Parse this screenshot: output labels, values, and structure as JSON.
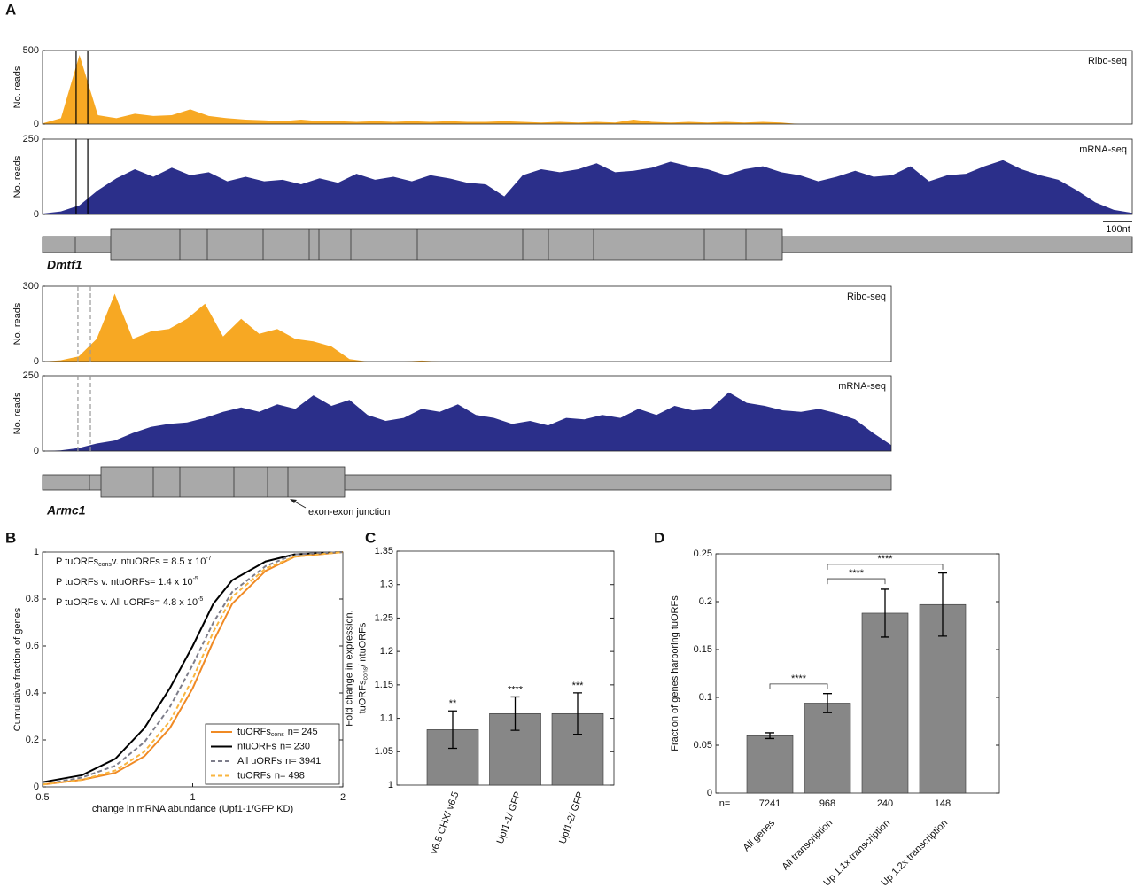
{
  "panel_labels": [
    "A",
    "B",
    "C",
    "D"
  ],
  "chart_data": [
    {
      "type": "area",
      "label": "Ribo-seq",
      "ylabel": "No. reads",
      "color": "#f7a823",
      "ylim": [
        0,
        500
      ],
      "yticks": [
        0,
        500
      ],
      "markers": [
        1.82,
        2.45
      ],
      "marker_style": "solid",
      "values": [
        5,
        40,
        470,
        60,
        40,
        70,
        55,
        60,
        100,
        55,
        40,
        30,
        25,
        20,
        30,
        20,
        20,
        15,
        20,
        15,
        20,
        15,
        20,
        15,
        15,
        20,
        15,
        10,
        15,
        10,
        15,
        10,
        30,
        15,
        10,
        15,
        10,
        15,
        10,
        15,
        10,
        0,
        0,
        0,
        0,
        0,
        0,
        0,
        0,
        0,
        0,
        0,
        0,
        0,
        0,
        0,
        0,
        0,
        0,
        0
      ]
    },
    {
      "type": "area",
      "label": "mRNA-seq",
      "ylabel": "No. reads",
      "color": "#2b2f8a",
      "ylim": [
        0,
        250
      ],
      "yticks": [
        0,
        250
      ],
      "markers": [
        1.82,
        2.45
      ],
      "marker_style": "solid",
      "gene": "Dmtf1",
      "scale_bar": "100nt",
      "values": [
        3,
        10,
        30,
        80,
        120,
        150,
        125,
        155,
        130,
        140,
        110,
        125,
        110,
        115,
        100,
        120,
        105,
        135,
        115,
        125,
        110,
        130,
        120,
        105,
        100,
        60,
        130,
        150,
        140,
        150,
        170,
        140,
        145,
        155,
        175,
        160,
        150,
        130,
        150,
        160,
        140,
        130,
        110,
        125,
        145,
        125,
        130,
        160,
        110,
        130,
        135,
        160,
        180,
        150,
        130,
        115,
        80,
        40,
        15,
        5
      ]
    },
    {
      "type": "area",
      "label": "Ribo-seq",
      "ylabel": "No. reads",
      "color": "#f7a823",
      "ylim": [
        0,
        300
      ],
      "yticks": [
        0,
        300
      ],
      "markers": [
        1.96,
        2.65
      ],
      "marker_style": "dashed",
      "values": [
        0,
        5,
        20,
        90,
        270,
        90,
        120,
        130,
        170,
        230,
        100,
        170,
        110,
        130,
        90,
        80,
        60,
        10,
        0,
        0,
        0,
        4,
        0,
        0,
        0,
        0,
        0,
        0,
        0,
        0,
        0,
        0,
        0,
        0,
        0,
        0,
        0,
        0,
        0,
        0,
        0,
        0,
        0,
        0,
        0,
        0,
        0,
        0
      ]
    },
    {
      "type": "area",
      "label": "mRNA-seq",
      "ylabel": "No. reads",
      "color": "#2b2f8a",
      "ylim": [
        0,
        250
      ],
      "yticks": [
        0,
        250
      ],
      "markers": [
        1.96,
        2.65
      ],
      "marker_style": "dashed",
      "gene": "Armc1",
      "annotation": "exon-exon junction",
      "values": [
        0,
        2,
        10,
        25,
        35,
        60,
        80,
        90,
        95,
        110,
        130,
        145,
        130,
        155,
        140,
        185,
        150,
        170,
        120,
        100,
        110,
        140,
        130,
        155,
        120,
        110,
        90,
        100,
        85,
        110,
        105,
        120,
        110,
        140,
        120,
        150,
        135,
        140,
        195,
        160,
        150,
        135,
        130,
        140,
        125,
        105,
        60,
        20
      ]
    },
    {
      "type": "line",
      "xscale": "log",
      "xlabel": "change in mRNA abundance (Upf1-1/GFP KD)",
      "ylabel": "Cumulative fraction of genes",
      "xlim": [
        0.5,
        2
      ],
      "xticks": [
        0.5,
        1,
        2
      ],
      "ylim": [
        0,
        1
      ],
      "yticks": [
        0,
        0.2,
        0.4,
        0.6,
        0.8,
        1
      ],
      "legend": "lower right",
      "x": [
        0.5,
        0.6,
        0.7,
        0.8,
        0.9,
        1.0,
        1.1,
        1.2,
        1.4,
        1.6,
        2
      ],
      "annotations": [
        [
          {
            "text": "P tuORFs"
          },
          {
            "sub": "cons"
          },
          {
            "text": "v. ntuORFs = 8.5 x 10"
          },
          {
            "sup": "-7"
          }
        ],
        [
          {
            "text": "P tuORFs v. ntuORFs= 1.4 x 10"
          },
          {
            "sup": "-5"
          }
        ],
        [
          {
            "text": "P tuORFs v. All uORFs= 4.8 x 10"
          },
          {
            "sup": "-5"
          }
        ]
      ],
      "series": [
        {
          "name": "tuORFs",
          "name_sub": "cons",
          "n": "n= 245",
          "color": "#f08a24",
          "dashed": false,
          "values": [
            0.01,
            0.03,
            0.06,
            0.13,
            0.25,
            0.42,
            0.62,
            0.78,
            0.92,
            0.98,
            1
          ]
        },
        {
          "name": "ntuORFs",
          "n": "n= 230",
          "color": "#000000",
          "dashed": false,
          "values": [
            0.02,
            0.05,
            0.12,
            0.25,
            0.42,
            0.6,
            0.78,
            0.88,
            0.96,
            0.99,
            1
          ]
        },
        {
          "name": "All uORFs",
          "n": "n= 3941",
          "color": "#7d7d8a",
          "dashed": true,
          "values": [
            0.01,
            0.04,
            0.09,
            0.19,
            0.34,
            0.52,
            0.7,
            0.83,
            0.94,
            0.99,
            1
          ]
        },
        {
          "name": "tuORFs",
          "n": "n= 498",
          "color": "#f9b53f",
          "dashed": true,
          "values": [
            0.01,
            0.03,
            0.07,
            0.15,
            0.28,
            0.46,
            0.66,
            0.81,
            0.93,
            0.98,
            1
          ]
        }
      ]
    },
    {
      "type": "bar",
      "ylabel": [
        [
          {
            "text": "Fold change in expression,"
          }
        ],
        [
          {
            "text": "tuORFs"
          },
          {
            "sub": "cons"
          },
          {
            "text": "/ ntuORFs"
          }
        ]
      ],
      "categories": [
        "v6.5 CHX/ v6.5",
        "Upf1-1/ GFP",
        "Upf1-2/ GFP"
      ],
      "values": [
        1.083,
        1.107,
        1.107
      ],
      "errors": [
        0.028,
        0.025,
        0.031
      ],
      "significance": [
        "**",
        "****",
        "***"
      ],
      "color": "#878787",
      "ylim": [
        1,
        1.35
      ],
      "yticks": [
        1,
        1.05,
        1.1,
        1.15,
        1.2,
        1.25,
        1.3,
        1.35
      ]
    },
    {
      "type": "bar",
      "ylabel": [
        [
          {
            "text": "Fraction of genes harboring tuORFs"
          }
        ]
      ],
      "categories": [
        "All genes",
        "All transcription",
        "Up 1.1x transcription",
        "Up 1.2x transcription"
      ],
      "values": [
        0.06,
        0.094,
        0.188,
        0.197
      ],
      "errors": [
        0.003,
        0.01,
        0.025,
        0.033
      ],
      "n_prefix": "n=",
      "n_labels": [
        "7241",
        "968",
        "240",
        "148"
      ],
      "color": "#878787",
      "ylim": [
        0,
        0.25
      ],
      "yticks": [
        0,
        0.05,
        0.1,
        0.15,
        0.2,
        0.25
      ],
      "brackets": [
        {
          "from": 0,
          "to": 1,
          "y": 0.114,
          "label": "****"
        },
        {
          "from": 1,
          "to": 2,
          "y": 0.224,
          "label": "****"
        },
        {
          "from": 1,
          "to": 3,
          "y": 0.239,
          "label": "****"
        }
      ]
    }
  ]
}
